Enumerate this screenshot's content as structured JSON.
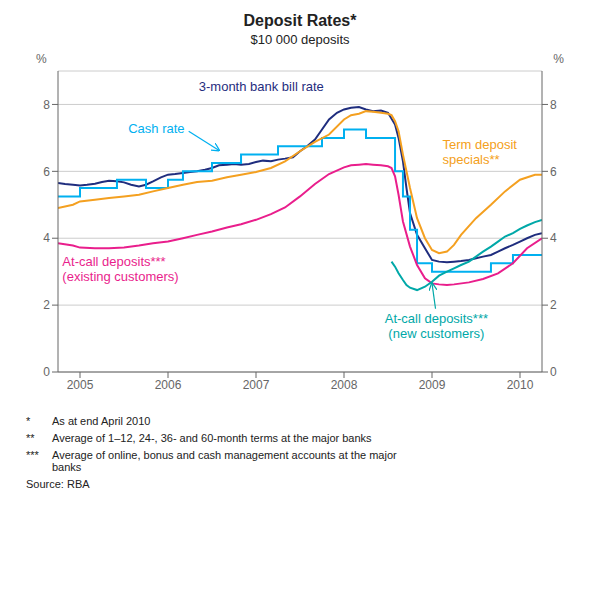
{
  "chart_data": {
    "type": "line",
    "title": "Deposit Rates*",
    "subtitle": "$10 000 deposits",
    "y_label": "%",
    "y2_label": "%",
    "xlim": [
      2004.75,
      2010.25
    ],
    "xticks": [
      2005,
      2006,
      2007,
      2008,
      2009,
      2010
    ],
    "ylim": [
      0,
      9
    ],
    "yticks": [
      0,
      2,
      4,
      6,
      8
    ],
    "y2lim": [
      0,
      9
    ],
    "y2ticks": [
      0,
      2,
      4,
      6,
      8
    ],
    "grid": true,
    "series": [
      {
        "name": "3-month bank bill rate",
        "color": "#1f2d7e",
        "x": [
          2004.75,
          2004.83,
          2004.92,
          2005.0,
          2005.08,
          2005.17,
          2005.25,
          2005.33,
          2005.42,
          2005.5,
          2005.58,
          2005.67,
          2005.75,
          2005.83,
          2005.92,
          2006.0,
          2006.08,
          2006.17,
          2006.25,
          2006.33,
          2006.42,
          2006.5,
          2006.58,
          2006.67,
          2006.75,
          2006.83,
          2006.92,
          2007.0,
          2007.08,
          2007.17,
          2007.25,
          2007.33,
          2007.42,
          2007.5,
          2007.58,
          2007.67,
          2007.75,
          2007.83,
          2007.92,
          2008.0,
          2008.08,
          2008.17,
          2008.25,
          2008.33,
          2008.42,
          2008.5,
          2008.58,
          2008.62,
          2008.67,
          2008.71,
          2008.75,
          2008.83,
          2008.92,
          2009.0,
          2009.08,
          2009.17,
          2009.25,
          2009.33,
          2009.42,
          2009.5,
          2009.58,
          2009.67,
          2009.75,
          2009.83,
          2009.92,
          2010.0,
          2010.08,
          2010.17,
          2010.25
        ],
        "values": [
          5.65,
          5.62,
          5.6,
          5.58,
          5.6,
          5.63,
          5.68,
          5.72,
          5.7,
          5.67,
          5.6,
          5.55,
          5.6,
          5.7,
          5.82,
          5.9,
          5.92,
          5.95,
          5.98,
          6.0,
          6.05,
          6.1,
          6.18,
          6.2,
          6.22,
          6.2,
          6.22,
          6.28,
          6.32,
          6.3,
          6.35,
          6.38,
          6.42,
          6.6,
          6.75,
          6.95,
          7.25,
          7.55,
          7.75,
          7.85,
          7.9,
          7.92,
          7.85,
          7.8,
          7.82,
          7.75,
          7.4,
          7.0,
          6.3,
          5.5,
          4.75,
          4.1,
          3.7,
          3.35,
          3.3,
          3.28,
          3.3,
          3.32,
          3.35,
          3.4,
          3.45,
          3.5,
          3.6,
          3.7,
          3.8,
          3.9,
          4.0,
          4.1,
          4.15
        ]
      },
      {
        "name": "Cash rate",
        "color": "#00b0f0",
        "x": [
          2004.75,
          2005.0,
          2005.0,
          2005.25,
          2005.25,
          2005.42,
          2005.42,
          2005.75,
          2005.75,
          2006.0,
          2006.0,
          2006.17,
          2006.17,
          2006.5,
          2006.5,
          2006.83,
          2006.83,
          2007.0,
          2007.0,
          2007.25,
          2007.25,
          2007.58,
          2007.58,
          2007.75,
          2007.75,
          2008.0,
          2008.0,
          2008.25,
          2008.25,
          2008.5,
          2008.5,
          2008.58,
          2008.58,
          2008.67,
          2008.67,
          2008.75,
          2008.75,
          2008.83,
          2008.83,
          2009.0,
          2009.0,
          2009.17,
          2009.17,
          2009.42,
          2009.42,
          2009.67,
          2009.67,
          2009.92,
          2009.92,
          2010.25
        ],
        "values": [
          5.25,
          5.25,
          5.5,
          5.5,
          5.5,
          5.5,
          5.75,
          5.75,
          5.5,
          5.5,
          5.75,
          5.75,
          6.0,
          6.0,
          6.25,
          6.25,
          6.5,
          6.5,
          6.5,
          6.5,
          6.75,
          6.75,
          6.75,
          6.75,
          7.0,
          7.0,
          7.25,
          7.25,
          7.0,
          7.0,
          7.0,
          7.0,
          6.0,
          6.0,
          5.25,
          5.25,
          4.25,
          4.25,
          3.25,
          3.25,
          3.0,
          3.0,
          3.0,
          3.0,
          3.0,
          3.0,
          3.25,
          3.25,
          3.5,
          3.5
        ]
      },
      {
        "name": "Term deposit\nspecials**",
        "color": "#f4a020",
        "x": [
          2004.75,
          2004.92,
          2005.0,
          2005.17,
          2005.33,
          2005.5,
          2005.67,
          2005.83,
          2006.0,
          2006.17,
          2006.33,
          2006.5,
          2006.67,
          2006.83,
          2007.0,
          2007.17,
          2007.33,
          2007.5,
          2007.67,
          2007.83,
          2008.0,
          2008.08,
          2008.17,
          2008.25,
          2008.33,
          2008.42,
          2008.5,
          2008.54,
          2008.58,
          2008.62,
          2008.67,
          2008.75,
          2008.83,
          2008.92,
          2009.0,
          2009.08,
          2009.17,
          2009.25,
          2009.33,
          2009.5,
          2009.67,
          2009.83,
          2010.0,
          2010.17,
          2010.25
        ],
        "values": [
          4.9,
          5.0,
          5.1,
          5.15,
          5.2,
          5.25,
          5.3,
          5.4,
          5.5,
          5.6,
          5.68,
          5.72,
          5.82,
          5.9,
          5.98,
          6.1,
          6.3,
          6.6,
          6.88,
          7.1,
          7.55,
          7.68,
          7.72,
          7.8,
          7.78,
          7.75,
          7.72,
          7.68,
          7.5,
          7.2,
          6.5,
          5.5,
          4.6,
          4.0,
          3.65,
          3.55,
          3.6,
          3.8,
          4.1,
          4.6,
          5.0,
          5.4,
          5.75,
          5.9,
          5.9
        ]
      },
      {
        "name": "At-call deposits***\n(existing customers)",
        "color": "#e91e8c",
        "x": [
          2004.75,
          2004.92,
          2005.0,
          2005.17,
          2005.33,
          2005.5,
          2005.67,
          2005.83,
          2006.0,
          2006.17,
          2006.33,
          2006.5,
          2006.67,
          2006.83,
          2007.0,
          2007.17,
          2007.33,
          2007.5,
          2007.67,
          2007.83,
          2008.0,
          2008.08,
          2008.17,
          2008.25,
          2008.33,
          2008.42,
          2008.5,
          2008.54,
          2008.58,
          2008.62,
          2008.67,
          2008.75,
          2008.83,
          2008.92,
          2009.0,
          2009.08,
          2009.17,
          2009.25,
          2009.42,
          2009.58,
          2009.75,
          2009.92,
          2010.08,
          2010.25
        ],
        "values": [
          3.85,
          3.78,
          3.72,
          3.7,
          3.7,
          3.72,
          3.78,
          3.85,
          3.9,
          4.0,
          4.1,
          4.2,
          4.32,
          4.42,
          4.55,
          4.72,
          4.92,
          5.25,
          5.62,
          5.92,
          6.12,
          6.18,
          6.2,
          6.22,
          6.2,
          6.18,
          6.15,
          6.1,
          5.85,
          5.3,
          4.5,
          3.75,
          3.2,
          2.8,
          2.65,
          2.62,
          2.6,
          2.62,
          2.68,
          2.78,
          2.95,
          3.25,
          3.7,
          4.0
        ]
      },
      {
        "name": "At-call deposits***\n(new customers)",
        "color": "#00a8a8",
        "x": [
          2008.54,
          2008.58,
          2008.62,
          2008.67,
          2008.71,
          2008.75,
          2008.83,
          2008.92,
          2009.0,
          2009.08,
          2009.17,
          2009.25,
          2009.33,
          2009.42,
          2009.5,
          2009.58,
          2009.67,
          2009.75,
          2009.83,
          2009.92,
          2010.0,
          2010.08,
          2010.17,
          2010.25
        ],
        "values": [
          3.3,
          3.15,
          2.95,
          2.75,
          2.6,
          2.52,
          2.45,
          2.55,
          2.7,
          2.88,
          3.0,
          3.1,
          3.2,
          3.3,
          3.45,
          3.6,
          3.75,
          3.9,
          4.05,
          4.15,
          4.28,
          4.38,
          4.48,
          4.55
        ]
      }
    ],
    "footnotes": [
      {
        "marker": "*",
        "text": "As at end April 2010"
      },
      {
        "marker": "**",
        "text": "Average of 1–12, 24-, 36- and 60-month terms at the major banks"
      },
      {
        "marker": "***",
        "text": "Average of online, bonus and cash management accounts at the major\nbanks"
      }
    ],
    "source": "Source: RBA"
  }
}
